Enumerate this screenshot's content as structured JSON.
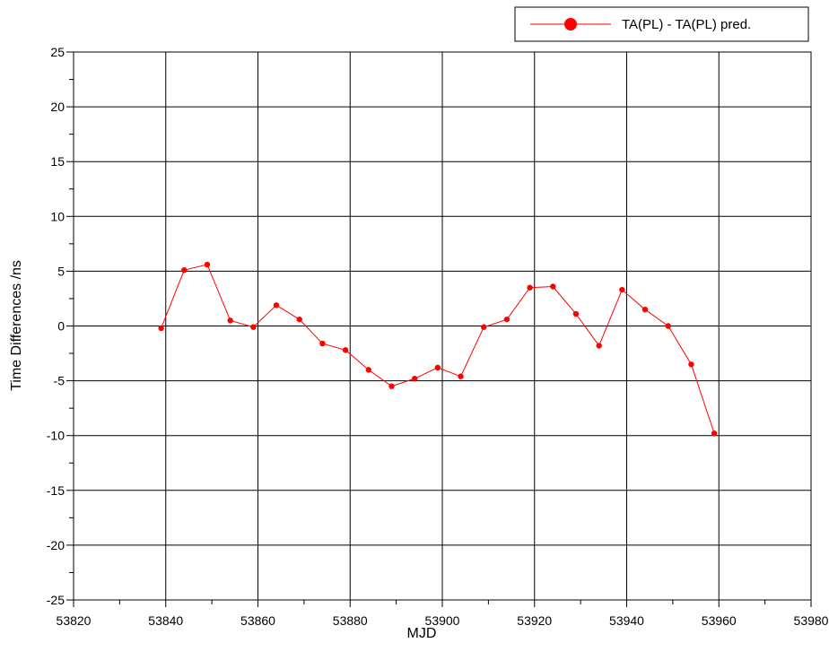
{
  "chart_data": {
    "type": "line",
    "title": "",
    "xlabel": "MJD",
    "ylabel": "Time Differences /ns",
    "xlim": [
      53820,
      53980
    ],
    "ylim": [
      -25,
      25
    ],
    "xticks": [
      53820,
      53840,
      53860,
      53880,
      53900,
      53920,
      53940,
      53960,
      53980
    ],
    "yticks": [
      -25,
      -20,
      -15,
      -10,
      -5,
      0,
      5,
      10,
      15,
      20,
      25
    ],
    "grid": true,
    "legend_position": "top-right",
    "series": [
      {
        "name": "TA(PL) - TA(PL) pred.",
        "color": "#ff0000",
        "x": [
          53839,
          53844,
          53849,
          53854,
          53859,
          53864,
          53869,
          53874,
          53879,
          53884,
          53889,
          53894,
          53899,
          53904,
          53909,
          53914,
          53919,
          53924,
          53929,
          53934,
          53939,
          53944,
          53949,
          53954,
          53959
        ],
        "y": [
          -0.2,
          5.1,
          5.6,
          0.5,
          -0.1,
          1.9,
          0.6,
          -1.6,
          -2.2,
          -4.0,
          -5.5,
          -4.8,
          -3.8,
          -4.6,
          -0.1,
          0.6,
          3.5,
          3.6,
          1.1,
          -1.8,
          3.3,
          1.5,
          0.0,
          -3.5,
          -9.8
        ]
      }
    ]
  }
}
